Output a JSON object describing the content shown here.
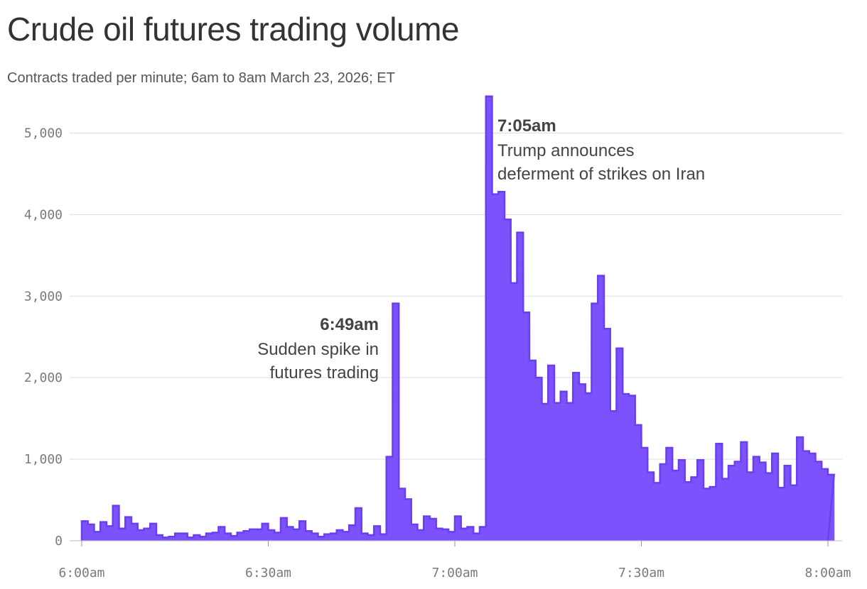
{
  "title": "Crude oil futures trading volume",
  "subtitle": "Contracts traded per minute; 6am to 8am March 23, 2026; ET",
  "colors": {
    "bar_fill": "#7b52fb",
    "bar_stroke": "#6a3ff0",
    "grid": "#dddddd",
    "text": "#333333"
  },
  "annotations": [
    {
      "time": "6:49am",
      "lines": [
        "Sudden spike in",
        "futures trading"
      ]
    },
    {
      "time": "7:05am",
      "lines": [
        "Trump announces",
        "deferment of strikes on Iran"
      ]
    }
  ],
  "chart_data": {
    "type": "area",
    "step": true,
    "x_unit": "minutes after 6:00am",
    "x_ticks": [
      {
        "x": 0,
        "label": "6:00am"
      },
      {
        "x": 30,
        "label": "6:30am"
      },
      {
        "x": 60,
        "label": "7:00am"
      },
      {
        "x": 90,
        "label": "7:30am"
      },
      {
        "x": 120,
        "label": "8:00am"
      }
    ],
    "y_ticks": [
      {
        "y": 0,
        "label": "0"
      },
      {
        "y": 1000,
        "label": "1,000"
      },
      {
        "y": 2000,
        "label": "2,000"
      },
      {
        "y": 3000,
        "label": "3,000"
      },
      {
        "y": 4000,
        "label": "4,000"
      },
      {
        "y": 5000,
        "label": "5,000"
      }
    ],
    "xlim": [
      0,
      120
    ],
    "ylim": [
      0,
      5500
    ],
    "grid": true,
    "series": [
      {
        "values": [
          240,
          200,
          110,
          230,
          180,
          430,
          150,
          290,
          210,
          130,
          150,
          210,
          70,
          40,
          50,
          90,
          90,
          40,
          70,
          50,
          90,
          100,
          170,
          90,
          60,
          100,
          120,
          140,
          140,
          210,
          130,
          100,
          280,
          170,
          140,
          240,
          120,
          90,
          50,
          80,
          90,
          130,
          110,
          190,
          400,
          90,
          70,
          180,
          80,
          1030,
          2910,
          640,
          510,
          200,
          130,
          300,
          270,
          150,
          140,
          110,
          300,
          150,
          170,
          90,
          170,
          5450,
          4250,
          4280,
          3940,
          3160,
          3780,
          2800,
          2210,
          2000,
          1680,
          2150,
          1690,
          1830,
          1690,
          2060,
          1920,
          1810,
          2910,
          3250,
          2600,
          1590,
          2360,
          1800,
          1780,
          1420,
          1140,
          840,
          710,
          940,
          1140,
          860,
          990,
          720,
          780,
          990,
          640,
          660,
          1190,
          760,
          920,
          970,
          1210,
          840,
          1030,
          960,
          830,
          1070,
          650,
          920,
          680,
          1270,
          1100,
          1070,
          970,
          880,
          810
        ]
      }
    ]
  }
}
